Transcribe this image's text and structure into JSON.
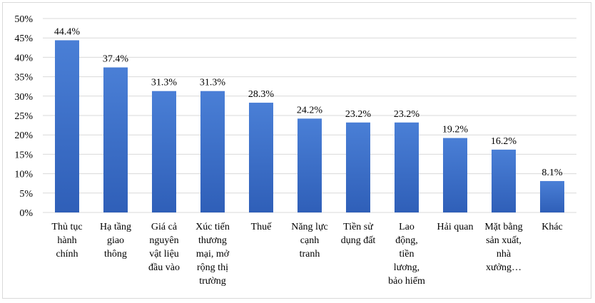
{
  "chart_data": {
    "type": "bar",
    "categories": [
      "Thủ tục hành chính",
      "Hạ tầng giao thông",
      "Giá cả nguyên vật liệu đầu vào",
      "Xúc tiến thương mại, mở rộng thị trường",
      "Thuế",
      "Năng lực cạnh tranh",
      "Tiền sử dụng đất",
      "Lao động, tiền lương, bảo hiểm",
      "Hải quan",
      "Mặt bằng sản xuất, nhà xưởng…",
      "Khác"
    ],
    "category_lines": [
      [
        "Thủ tục",
        "hành",
        "chính"
      ],
      [
        "Hạ tầng",
        "giao",
        "thông"
      ],
      [
        "Giá cả",
        "nguyên",
        "vật liệu",
        "đầu vào"
      ],
      [
        "Xúc tiến",
        "thương",
        "mại, mở",
        "rộng thị",
        "trường"
      ],
      [
        "Thuế"
      ],
      [
        "Năng lực",
        "cạnh",
        "tranh"
      ],
      [
        "Tiền sử",
        "dụng đất"
      ],
      [
        "Lao",
        "động,",
        "tiền",
        "lương,",
        "bảo hiểm"
      ],
      [
        "Hải quan"
      ],
      [
        "Mặt bằng",
        "sản xuất,",
        "nhà",
        "xưởng…"
      ],
      [
        "Khác"
      ]
    ],
    "values": [
      44.4,
      37.4,
      31.3,
      31.3,
      28.3,
      24.2,
      23.2,
      23.2,
      19.2,
      16.2,
      8.1
    ],
    "data_labels": [
      "44.4%",
      "37.4%",
      "31.3%",
      "31.3%",
      "28.3%",
      "24.2%",
      "23.2%",
      "23.2%",
      "19.2%",
      "16.2%",
      "8.1%"
    ],
    "y_ticks": [
      "0%",
      "5%",
      "10%",
      "15%",
      "20%",
      "25%",
      "30%",
      "35%",
      "40%",
      "45%",
      "50%"
    ],
    "ylim": [
      0,
      50
    ],
    "grid": true,
    "bar_color_top": "#4a7fd6",
    "bar_color_bottom": "#2f5fb8",
    "grid_color": "#d9d9d9",
    "title": "",
    "xlabel": "",
    "ylabel": ""
  }
}
